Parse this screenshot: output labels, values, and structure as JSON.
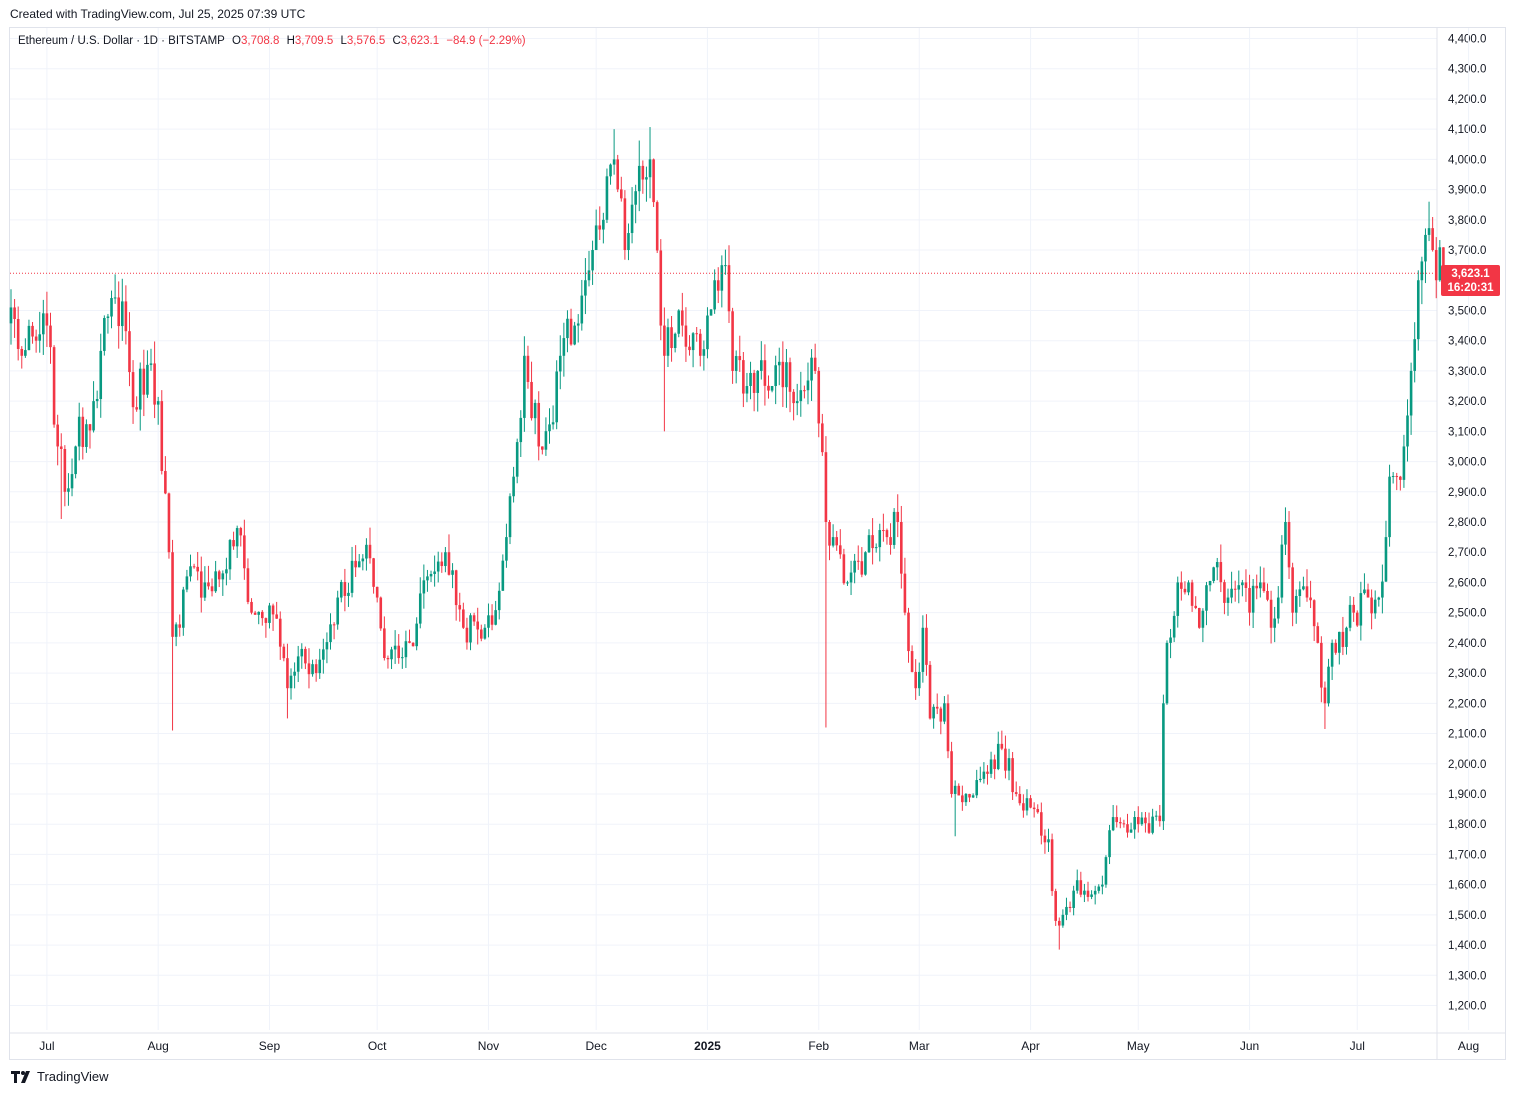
{
  "caption": "Created with TradingView.com, Jul 25, 2025 07:39 UTC",
  "legend": {
    "symbol": "Ethereum / U.S. Dollar · 1D · BITSTAMP",
    "o_label": "O",
    "o_value": "3,708.8",
    "h_label": "H",
    "h_value": "3,709.5",
    "l_label": "L",
    "l_value": "3,576.5",
    "c_label": "C",
    "c_value": "3,623.1",
    "change": "−84.9 (−2.29%)"
  },
  "last_price": {
    "value": "3,623.1",
    "countdown": "16:20:31"
  },
  "brand": "TradingView",
  "colors": {
    "up": "#089981",
    "down": "#f23645",
    "grid": "#f0f3fa",
    "text": "#131722"
  },
  "chart_data": {
    "type": "candlestick",
    "interval": "1D",
    "y_ticks": [
      1200,
      1300,
      1400,
      1500,
      1600,
      1700,
      1800,
      1900,
      2000,
      2100,
      2200,
      2300,
      2400,
      2500,
      2600,
      2700,
      2800,
      2900,
      3000,
      3100,
      3200,
      3300,
      3400,
      3500,
      3700,
      3800,
      3900,
      4000,
      4100,
      4200,
      4300,
      4400
    ],
    "y_tick_labels": [
      "1,200.0",
      "1,300.0",
      "1,400.0",
      "1,500.0",
      "1,600.0",
      "1,700.0",
      "1,800.0",
      "1,900.0",
      "2,000.0",
      "2,100.0",
      "2,200.0",
      "2,300.0",
      "2,400.0",
      "2,500.0",
      "2,600.0",
      "2,700.0",
      "2,800.0",
      "2,900.0",
      "3,000.0",
      "3,100.0",
      "3,200.0",
      "3,300.0",
      "3,400.0",
      "3,500.0",
      "3,700.0",
      "3,800.0",
      "3,900.0",
      "4,000.0",
      "4,100.0",
      "4,200.0",
      "4,300.0",
      "4,400.0"
    ],
    "ylim": [
      1150,
      4450
    ],
    "x_ticks": [
      {
        "label": "Jul",
        "date": "2024-07-01",
        "bold": false
      },
      {
        "label": "Aug",
        "date": "2024-08-01",
        "bold": false
      },
      {
        "label": "Sep",
        "date": "2024-09-01",
        "bold": false
      },
      {
        "label": "Oct",
        "date": "2024-10-01",
        "bold": false
      },
      {
        "label": "Nov",
        "date": "2024-11-01",
        "bold": false
      },
      {
        "label": "Dec",
        "date": "2024-12-01",
        "bold": false
      },
      {
        "label": "2025",
        "date": "2025-01-01",
        "bold": true
      },
      {
        "label": "Feb",
        "date": "2025-02-01",
        "bold": false
      },
      {
        "label": "Mar",
        "date": "2025-03-01",
        "bold": false
      },
      {
        "label": "Apr",
        "date": "2025-04-01",
        "bold": false
      },
      {
        "label": "May",
        "date": "2025-05-01",
        "bold": false
      },
      {
        "label": "Jun",
        "date": "2025-06-01",
        "bold": false
      },
      {
        "label": "Jul",
        "date": "2025-07-01",
        "bold": false
      },
      {
        "label": "Aug",
        "date": "2025-08-01",
        "bold": false
      }
    ],
    "start_date": "2024-06-21",
    "last_price": 3623.1,
    "close_anchors": [
      [
        "2024-06-21",
        3510
      ],
      [
        "2024-06-24",
        3350
      ],
      [
        "2024-06-28",
        3400
      ],
      [
        "2024-07-01",
        3450
      ],
      [
        "2024-07-04",
        3050
      ],
      [
        "2024-07-06",
        2900
      ],
      [
        "2024-07-09",
        3050
      ],
      [
        "2024-07-14",
        3200
      ],
      [
        "2024-07-18",
        3480
      ],
      [
        "2024-07-22",
        3530
      ],
      [
        "2024-07-25",
        3180
      ],
      [
        "2024-07-29",
        3320
      ],
      [
        "2024-08-01",
        3200
      ],
      [
        "2024-08-04",
        2700
      ],
      [
        "2024-08-05",
        2420
      ],
      [
        "2024-08-07",
        2450
      ],
      [
        "2024-08-09",
        2620
      ],
      [
        "2024-08-14",
        2600
      ],
      [
        "2024-08-19",
        2630
      ],
      [
        "2024-08-23",
        2780
      ],
      [
        "2024-08-27",
        2500
      ],
      [
        "2024-09-03",
        2480
      ],
      [
        "2024-09-06",
        2250
      ],
      [
        "2024-09-10",
        2380
      ],
      [
        "2024-09-14",
        2300
      ],
      [
        "2024-09-20",
        2550
      ],
      [
        "2024-09-25",
        2650
      ],
      [
        "2024-09-29",
        2680
      ],
      [
        "2024-10-01",
        2550
      ],
      [
        "2024-10-03",
        2350
      ],
      [
        "2024-10-10",
        2400
      ],
      [
        "2024-10-15",
        2620
      ],
      [
        "2024-10-20",
        2700
      ],
      [
        "2024-10-25",
        2450
      ],
      [
        "2024-10-31",
        2450
      ],
      [
        "2024-11-02",
        2460
      ],
      [
        "2024-11-06",
        2750
      ],
      [
        "2024-11-08",
        2950
      ],
      [
        "2024-11-11",
        3350
      ],
      [
        "2024-11-15",
        3050
      ],
      [
        "2024-11-19",
        3130
      ],
      [
        "2024-11-21",
        3350
      ],
      [
        "2024-11-25",
        3450
      ],
      [
        "2024-11-28",
        3600
      ],
      [
        "2024-11-30",
        3700
      ],
      [
        "2024-12-03",
        3800
      ],
      [
        "2024-12-06",
        4000
      ],
      [
        "2024-12-09",
        3700
      ],
      [
        "2024-12-11",
        3850
      ],
      [
        "2024-12-16",
        4000
      ],
      [
        "2024-12-19",
        3450
      ],
      [
        "2024-12-20",
        3350
      ],
      [
        "2024-12-24",
        3500
      ],
      [
        "2024-12-30",
        3350
      ],
      [
        "2025-01-03",
        3600
      ],
      [
        "2025-01-06",
        3650
      ],
      [
        "2025-01-08",
        3300
      ],
      [
        "2025-01-12",
        3250
      ],
      [
        "2025-01-15",
        3300
      ],
      [
        "2025-01-19",
        3250
      ],
      [
        "2025-01-21",
        3330
      ],
      [
        "2025-01-26",
        3200
      ],
      [
        "2025-01-31",
        3300
      ],
      [
        "2025-02-03",
        2800
      ],
      [
        "2025-02-05",
        2750
      ],
      [
        "2025-02-09",
        2600
      ],
      [
        "2025-02-14",
        2700
      ],
      [
        "2025-02-20",
        2750
      ],
      [
        "2025-02-23",
        2800
      ],
      [
        "2025-02-25",
        2500
      ],
      [
        "2025-02-28",
        2250
      ],
      [
        "2025-03-02",
        2450
      ],
      [
        "2025-03-04",
        2150
      ],
      [
        "2025-03-08",
        2200
      ],
      [
        "2025-03-10",
        1900
      ],
      [
        "2025-03-14",
        1900
      ],
      [
        "2025-03-18",
        1950
      ],
      [
        "2025-03-24",
        2050
      ],
      [
        "2025-03-28",
        1900
      ],
      [
        "2025-04-02",
        1850
      ],
      [
        "2025-04-06",
        1750
      ],
      [
        "2025-04-08",
        1480
      ],
      [
        "2025-04-10",
        1500
      ],
      [
        "2025-04-13",
        1580
      ],
      [
        "2025-04-16",
        1580
      ],
      [
        "2025-04-21",
        1600
      ],
      [
        "2025-04-23",
        1780
      ],
      [
        "2025-04-27",
        1800
      ],
      [
        "2025-05-01",
        1800
      ],
      [
        "2025-05-07",
        1810
      ],
      [
        "2025-05-08",
        2200
      ],
      [
        "2025-05-09",
        2400
      ],
      [
        "2025-05-12",
        2600
      ],
      [
        "2025-05-15",
        2600
      ],
      [
        "2025-05-18",
        2450
      ],
      [
        "2025-05-22",
        2650
      ],
      [
        "2025-05-26",
        2550
      ],
      [
        "2025-05-30",
        2600
      ],
      [
        "2025-06-01",
        2500
      ],
      [
        "2025-06-04",
        2600
      ],
      [
        "2025-06-07",
        2450
      ],
      [
        "2025-06-09",
        2550
      ],
      [
        "2025-06-11",
        2800
      ],
      [
        "2025-06-13",
        2500
      ],
      [
        "2025-06-17",
        2550
      ],
      [
        "2025-06-20",
        2400
      ],
      [
        "2025-06-22",
        2200
      ],
      [
        "2025-06-24",
        2400
      ],
      [
        "2025-06-28",
        2450
      ],
      [
        "2025-06-30",
        2500
      ],
      [
        "2025-07-04",
        2550
      ],
      [
        "2025-07-07",
        2550
      ],
      [
        "2025-07-09",
        2750
      ],
      [
        "2025-07-10",
        2950
      ],
      [
        "2025-07-12",
        2950
      ],
      [
        "2025-07-14",
        3050
      ],
      [
        "2025-07-16",
        3300
      ],
      [
        "2025-07-18",
        3600
      ],
      [
        "2025-07-20",
        3750
      ],
      [
        "2025-07-22",
        3700
      ],
      [
        "2025-07-23",
        3600
      ],
      [
        "2025-07-24",
        3709
      ],
      [
        "2025-07-25",
        3623.1
      ]
    ],
    "extreme_wicks": [
      [
        "2024-08-05",
        "low",
        2110
      ],
      [
        "2024-12-16",
        "high",
        4107
      ],
      [
        "2024-12-06",
        "high",
        4100
      ],
      [
        "2025-02-03",
        "low",
        2120
      ],
      [
        "2025-04-09",
        "low",
        1385
      ],
      [
        "2025-06-22",
        "low",
        2115
      ],
      [
        "2025-07-21",
        "high",
        3860
      ],
      [
        "2024-07-05",
        "low",
        2810
      ],
      [
        "2024-12-20",
        "low",
        3100
      ],
      [
        "2024-09-06",
        "low",
        2150
      ],
      [
        "2025-03-11",
        "low",
        1760
      ]
    ]
  }
}
